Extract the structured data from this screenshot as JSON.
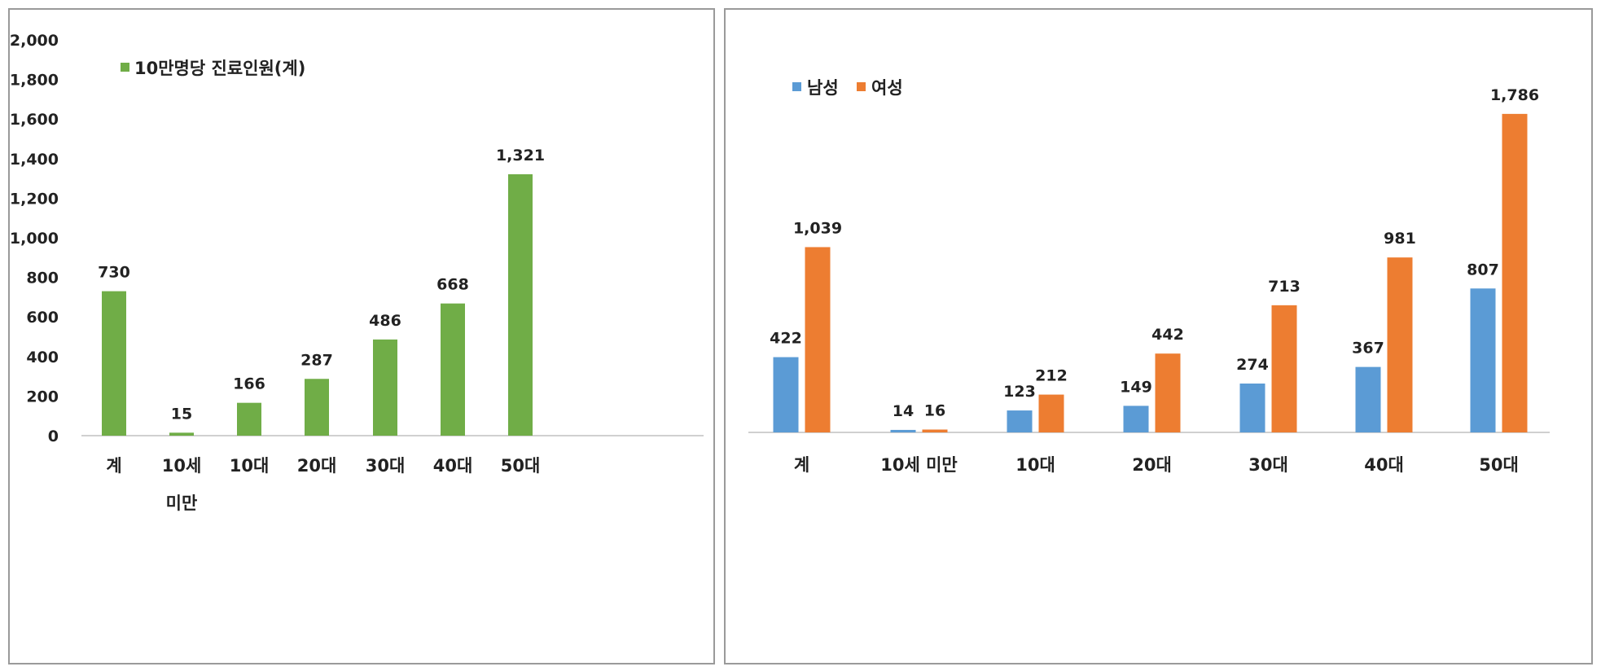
{
  "chart_data": [
    {
      "type": "bar",
      "categories": [
        "계",
        "10세\n미만",
        "10대",
        "20대",
        "30대",
        "40대",
        "50대"
      ],
      "series": [
        {
          "name": "10만명당 진료인원(계)",
          "values": [
            730,
            15,
            166,
            287,
            486,
            668,
            1321
          ],
          "labels": [
            "730",
            "15",
            "166",
            "287",
            "486",
            "668",
            "1,321"
          ]
        }
      ],
      "colors": [
        "#70ad47"
      ],
      "yticks": [
        "2,000",
        "1,800",
        "1,600",
        "1,400",
        "1,200",
        "1,000",
        "800",
        "600",
        "400",
        "200",
        "0"
      ],
      "ylim": [
        0,
        2000
      ],
      "grid": false,
      "legend": "top-left"
    },
    {
      "type": "bar",
      "categories": [
        "계",
        "10세 미만",
        "10대",
        "20대",
        "30대",
        "40대",
        "50대"
      ],
      "series": [
        {
          "name": "남성",
          "values": [
            422,
            14,
            123,
            149,
            274,
            367,
            807
          ],
          "labels": [
            "422",
            "14",
            "123",
            "149",
            "274",
            "367",
            "807"
          ]
        },
        {
          "name": "여성",
          "values": [
            1039,
            16,
            212,
            442,
            713,
            981,
            1786
          ],
          "labels": [
            "1,039",
            "16",
            "212",
            "442",
            "713",
            "981",
            "1,786"
          ]
        }
      ],
      "colors": [
        "#5b9bd5",
        "#ed7d31"
      ],
      "ylim": [
        0,
        2000
      ],
      "grid": false,
      "legend": "top-left"
    }
  ]
}
